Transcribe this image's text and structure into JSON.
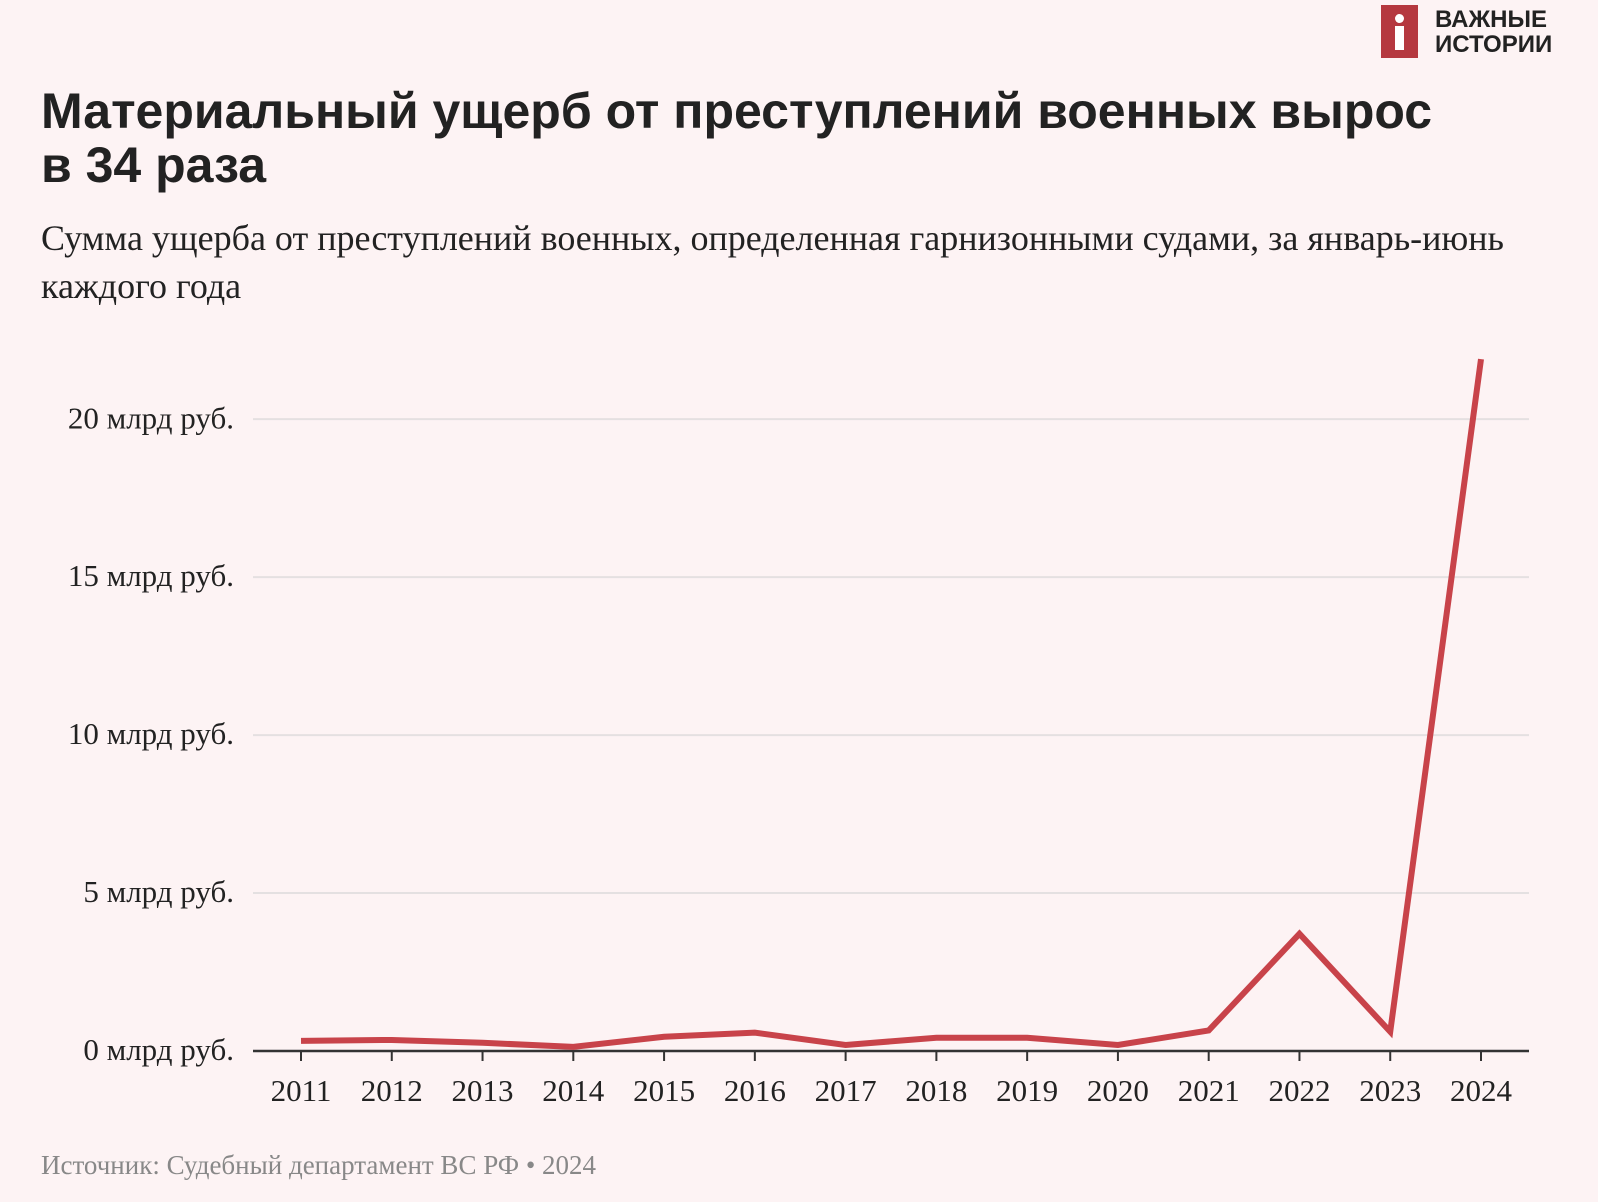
{
  "logo": {
    "line1": "ВАЖНЫЕ",
    "line2": "ИСТОРИИ"
  },
  "chart_data": {
    "type": "line",
    "title": "Материальный ущерб от преступлений военных вырос в 34 раза",
    "subtitle": "Сумма ущерба от преступлений военных, определенная гарнизонными судами, за январь-июнь каждого года",
    "source": "Источник: Судебный департамент ВС РФ • 2024",
    "categories": [
      "2011",
      "2012",
      "2013",
      "2014",
      "2015",
      "2016",
      "2017",
      "2018",
      "2019",
      "2020",
      "2021",
      "2022",
      "2023",
      "2024"
    ],
    "values": [
      0.32,
      0.35,
      0.26,
      0.13,
      0.45,
      0.58,
      0.19,
      0.42,
      0.42,
      0.19,
      0.65,
      3.71,
      0.61,
      21.9
    ],
    "color": "#c8434a",
    "ylim": [
      0,
      22
    ],
    "yticks": [
      {
        "value": 0,
        "label": "0 млрд руб."
      },
      {
        "value": 5,
        "label": "5 млрд руб."
      },
      {
        "value": 10,
        "label": "10 млрд руб."
      },
      {
        "value": 15,
        "label": "15 млрд руб."
      },
      {
        "value": 20,
        "label": "20 млрд руб."
      }
    ],
    "grid": true
  }
}
